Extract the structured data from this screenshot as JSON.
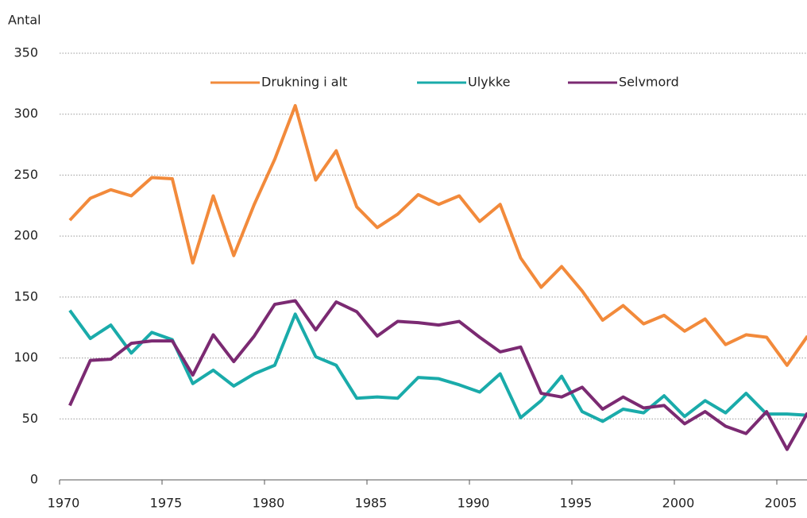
{
  "chart_data": {
    "type": "line",
    "y_label": "Antal",
    "categories": [
      "1970",
      null,
      null,
      null,
      null,
      "1975",
      null,
      null,
      null,
      null,
      "1980",
      null,
      null,
      null,
      null,
      "1985",
      null,
      null,
      null,
      null,
      "1990",
      null,
      null,
      null,
      null,
      "1995",
      null,
      null,
      null,
      null,
      "2000",
      null,
      null,
      null,
      null,
      "2005",
      null
    ],
    "series": [
      {
        "name": "Drukning i alt",
        "color": "#f28a3b",
        "values": [
          213,
          231,
          238,
          233,
          248,
          247,
          178,
          233,
          184,
          226,
          263,
          307,
          246,
          270,
          224,
          207,
          218,
          234,
          226,
          233,
          212,
          226,
          182,
          158,
          175,
          155,
          131,
          143,
          128,
          135,
          122,
          132,
          111,
          119,
          117,
          94,
          118
        ]
      },
      {
        "name": "Ulykke",
        "color": "#1aabaa",
        "values": [
          139,
          116,
          127,
          104,
          121,
          115,
          79,
          90,
          77,
          87,
          94,
          136,
          101,
          94,
          67,
          68,
          67,
          84,
          83,
          78,
          72,
          87,
          51,
          65,
          85,
          56,
          48,
          58,
          55,
          69,
          52,
          65,
          55,
          71,
          54,
          54,
          53
        ]
      },
      {
        "name": "Selvmord",
        "color": "#7b2a72",
        "values": [
          61,
          98,
          99,
          112,
          114,
          114,
          86,
          119,
          97,
          118,
          144,
          147,
          123,
          146,
          138,
          118,
          130,
          129,
          127,
          130,
          117,
          105,
          109,
          71,
          68,
          76,
          58,
          68,
          59,
          61,
          46,
          56,
          44,
          38,
          56,
          25,
          55
        ]
      }
    ],
    "ylim": [
      0,
      350
    ],
    "yticks": [
      0,
      50,
      100,
      150,
      200,
      250,
      300,
      350
    ],
    "grid": true
  }
}
